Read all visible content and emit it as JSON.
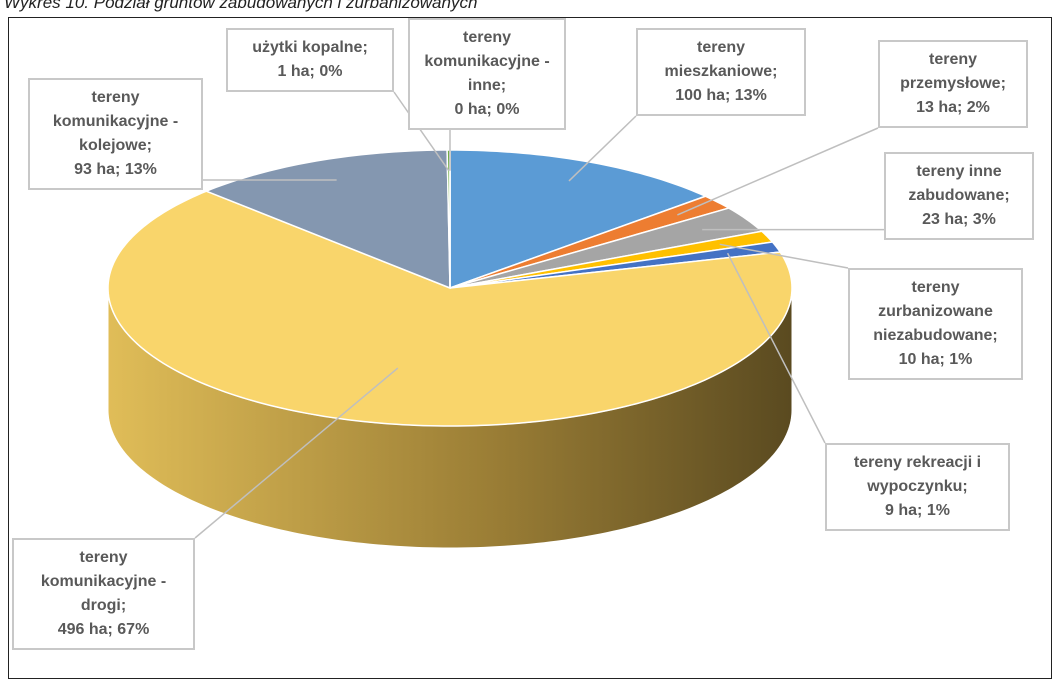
{
  "chart_data": {
    "type": "pie3d",
    "title": "Wykres 10. Podział gruntów zabudowanych i zurbanizowanych",
    "categories": [
      "tereny mieszkaniowe",
      "tereny przemysłowe",
      "tereny inne zabudowane",
      "tereny zurbanizowane niezabudowane",
      "tereny rekreacji i wypoczynku",
      "tereny komunikacyjne - drogi",
      "tereny komunikacyjne - kolejowe",
      "użytki kopalne",
      "tereny komunikacyjne - inne"
    ],
    "values": [
      100,
      13,
      23,
      10,
      9,
      496,
      93,
      1,
      0
    ],
    "value_labels": [
      "100 ha; 13%",
      "13 ha; 2%",
      "23 ha; 3%",
      "10 ha; 1%",
      "9 ha; 1%",
      "496 ha; 67%",
      "93 ha; 13%",
      "1 ha; 0%",
      "0 ha; 0%"
    ],
    "label_separator": ";",
    "colors": [
      "#5b9bd5",
      "#ed7d31",
      "#a5a5a5",
      "#ffc000",
      "#4472c4",
      "#f9d56b",
      "#8497b0",
      "#70ad47",
      "#264478"
    ]
  }
}
